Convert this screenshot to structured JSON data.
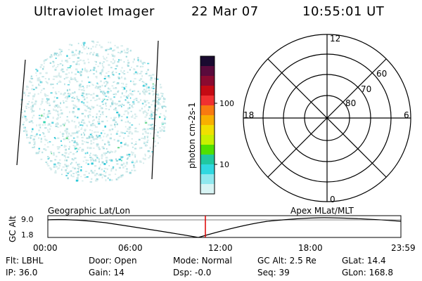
{
  "header": {
    "instrument": "Ultraviolet Imager",
    "date": "22 Mar 07",
    "time": "10:55:01 UT"
  },
  "colorbar": {
    "label": "photon cm-2s-1",
    "tick_labels": [
      "100",
      "10"
    ],
    "colors_top_to_bottom": [
      "#1a0a30",
      "#5a0a3c",
      "#8a0a30",
      "#c40a14",
      "#f03030",
      "#f87a10",
      "#f8b000",
      "#f0e000",
      "#c8f000",
      "#50e000",
      "#20c8a0",
      "#30d8e0",
      "#90e8ee",
      "#d8f4f4"
    ]
  },
  "polar": {
    "mlt_labels": {
      "top": "12",
      "left": "18",
      "right": "6",
      "bottom": "0"
    },
    "lat_labels": [
      "60",
      "70",
      "80"
    ]
  },
  "timeline": {
    "left_label": "Geographic Lat/Lon",
    "right_label": "Apex MLat/MLT",
    "axis_label": "GC Alt",
    "y_ticks": [
      "9.0",
      "1.8"
    ],
    "x_ticks": [
      "00:00",
      "06:00",
      "12:00",
      "18:00",
      "23:59"
    ],
    "marker_color": "#dd0000"
  },
  "status": {
    "flt": {
      "label": "Flt:",
      "value": "LBHL"
    },
    "ip": {
      "label": "IP:",
      "value": "36.0"
    },
    "door": {
      "label": "Door:",
      "value": "Open"
    },
    "gain": {
      "label": "Gain:",
      "value": "14"
    },
    "mode": {
      "label": "Mode:",
      "value": "Normal"
    },
    "dsp": {
      "label": "Dsp:",
      "value": "-0.0"
    },
    "gcalt": {
      "label": "GC Alt:",
      "value": "2.5 Re"
    },
    "seq": {
      "label": "Seq:",
      "value": "39"
    },
    "glat": {
      "label": "GLat:",
      "value": "14.4"
    },
    "glon": {
      "label": "GLon:",
      "value": "168.8"
    }
  }
}
